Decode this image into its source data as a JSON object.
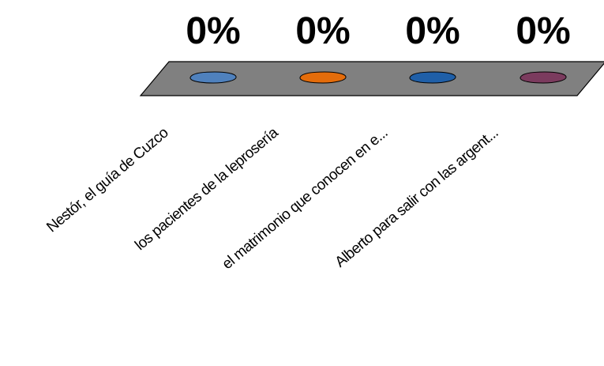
{
  "chart_data": {
    "type": "bar",
    "categories": [
      "Nestór, el guía de Cuzco",
      "los pacientes de la leprosería",
      "el matrimonio que conocen en e...",
      "Alberto para salir con las argent..."
    ],
    "values": [
      0,
      0,
      0,
      0
    ],
    "data_labels": [
      "0%",
      "0%",
      "0%",
      "0%"
    ],
    "colors": [
      "#4F81BD",
      "#E46C0A",
      "#1F5FA8",
      "#7B3B5E"
    ],
    "floor_color": "#808080",
    "title": "",
    "xlabel": "",
    "ylabel": "",
    "grid": false,
    "legend": "none"
  }
}
